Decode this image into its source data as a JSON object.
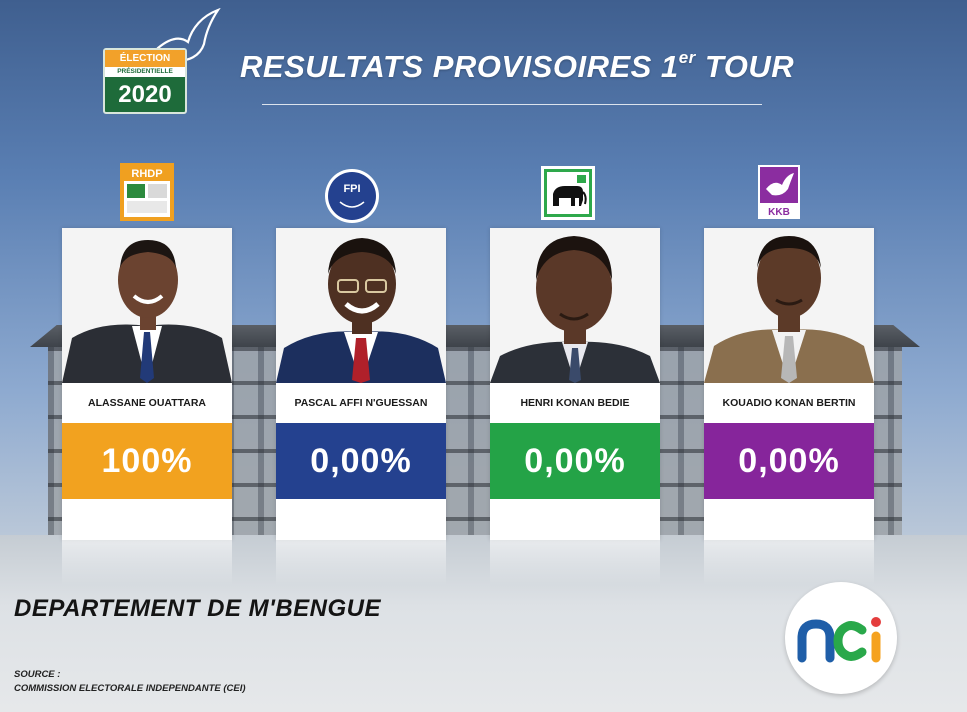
{
  "header": {
    "logo": {
      "line1": "ÉLECTION",
      "line2": "PRÉSIDENTIELLE",
      "year": "2020"
    },
    "title_main": "RESULTATS PROVISOIRES 1",
    "title_sup": "er",
    "title_end": " TOUR"
  },
  "candidates": [
    {
      "name": "ALASSANE OUATTARA",
      "percent": "100%",
      "party": "RHDP",
      "color": "#f2a21f",
      "suit": "#2b2e35",
      "tie": "#223a78",
      "skin": "#6b4330"
    },
    {
      "name": "PASCAL AFFI N'GUESSAN",
      "percent": "0,00%",
      "party": "FPI",
      "color": "#24418f",
      "suit": "#1c2f5e",
      "tie": "#b0202a",
      "skin": "#4e3022"
    },
    {
      "name": "HENRI KONAN BEDIE",
      "percent": "0,00%",
      "party": "PDCI",
      "color": "#24a347",
      "suit": "#2c3038",
      "tie": "#3a4a6a",
      "skin": "#5a3828"
    },
    {
      "name": "KOUADIO KONAN BERTIN",
      "percent": "0,00%",
      "party": "KKB",
      "color": "#86259b",
      "suit": "#8a6f4e",
      "tie": "#b7b7b7",
      "skin": "#5c3a28"
    }
  ],
  "department": "DEPARTEMENT DE M'BENGUE",
  "source": {
    "label": "SOURCE :",
    "value": "COMMISSION ELECTORALE INDEPENDANTE (CEI)"
  },
  "broadcaster": "nci"
}
